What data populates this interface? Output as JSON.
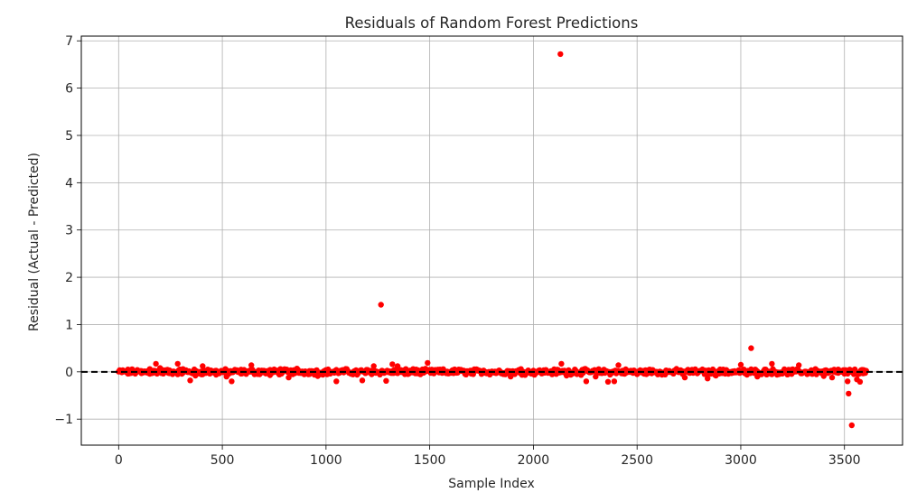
{
  "chart_data": {
    "type": "scatter",
    "title": "Residuals of Random Forest Predictions",
    "xlabel": "Sample Index",
    "ylabel": "Residual (Actual - Predicted)",
    "xlim": [
      -180,
      3780
    ],
    "ylim": [
      -1.55,
      7.1
    ],
    "xticks": [
      0,
      500,
      1000,
      1500,
      2000,
      2500,
      3000,
      3500
    ],
    "xtick_labels": [
      "0",
      "500",
      "1000",
      "1500",
      "2000",
      "2500",
      "3000",
      "3500"
    ],
    "yticks": [
      -1,
      0,
      1,
      2,
      3,
      4,
      5,
      6,
      7
    ],
    "ytick_labels": [
      "−1",
      "0",
      "1",
      "2",
      "3",
      "4",
      "5",
      "6",
      "7"
    ],
    "grid": true,
    "marker_color": "#ff0000",
    "reference_line": {
      "y": 0,
      "color": "#000000",
      "style": "dashed"
    },
    "sample_count": 3610,
    "series": [
      {
        "points": [
          [
            20,
            0.03
          ],
          [
            45,
            -0.04
          ],
          [
            85,
            0.02
          ],
          [
            110,
            -0.03
          ],
          [
            150,
            0.06
          ],
          [
            180,
            0.17
          ],
          [
            200,
            0.08
          ],
          [
            245,
            -0.03
          ],
          [
            285,
            0.17
          ],
          [
            310,
            0.06
          ],
          [
            345,
            -0.18
          ],
          [
            370,
            -0.08
          ],
          [
            405,
            0.12
          ],
          [
            430,
            0.05
          ],
          [
            470,
            -0.06
          ],
          [
            520,
            -0.1
          ],
          [
            545,
            -0.2
          ],
          [
            590,
            -0.04
          ],
          [
            640,
            0.14
          ],
          [
            690,
            0.03
          ],
          [
            730,
            -0.07
          ],
          [
            780,
            0.06
          ],
          [
            820,
            -0.12
          ],
          [
            860,
            0.07
          ],
          [
            920,
            0.02
          ],
          [
            960,
            -0.09
          ],
          [
            1000,
            0.04
          ],
          [
            1050,
            -0.2
          ],
          [
            1100,
            0.06
          ],
          [
            1150,
            -0.06
          ],
          [
            1175,
            -0.18
          ],
          [
            1230,
            0.12
          ],
          [
            1265,
            1.42
          ],
          [
            1290,
            -0.19
          ],
          [
            1320,
            0.16
          ],
          [
            1345,
            0.12
          ],
          [
            1380,
            -0.05
          ],
          [
            1420,
            0.06
          ],
          [
            1460,
            -0.03
          ],
          [
            1490,
            0.19
          ],
          [
            1530,
            0.04
          ],
          [
            1580,
            -0.03
          ],
          [
            1640,
            0.05
          ],
          [
            1700,
            -0.04
          ],
          [
            1760,
            0.03
          ],
          [
            1820,
            -0.02
          ],
          [
            1890,
            -0.1
          ],
          [
            1940,
            0.06
          ],
          [
            2000,
            -0.05
          ],
          [
            2060,
            0.04
          ],
          [
            2100,
            -0.02
          ],
          [
            2130,
            6.72
          ],
          [
            2135,
            0.17
          ],
          [
            2160,
            -0.08
          ],
          [
            2200,
            0.05
          ],
          [
            2255,
            -0.2
          ],
          [
            2300,
            -0.1
          ],
          [
            2360,
            -0.21
          ],
          [
            2390,
            -0.2
          ],
          [
            2410,
            0.14
          ],
          [
            2450,
            0.03
          ],
          [
            2500,
            -0.05
          ],
          [
            2560,
            0.05
          ],
          [
            2620,
            -0.06
          ],
          [
            2680,
            0.03
          ],
          [
            2730,
            -0.12
          ],
          [
            2780,
            0.02
          ],
          [
            2840,
            -0.14
          ],
          [
            2880,
            -0.08
          ],
          [
            2930,
            0.04
          ],
          [
            3000,
            0.15
          ],
          [
            3030,
            -0.06
          ],
          [
            3050,
            0.5
          ],
          [
            3080,
            -0.1
          ],
          [
            3120,
            0.05
          ],
          [
            3150,
            0.17
          ],
          [
            3200,
            -0.04
          ],
          [
            3240,
            0.04
          ],
          [
            3280,
            0.14
          ],
          [
            3320,
            -0.05
          ],
          [
            3360,
            0.06
          ],
          [
            3400,
            -0.09
          ],
          [
            3440,
            -0.12
          ],
          [
            3470,
            0.05
          ],
          [
            3500,
            -0.04
          ],
          [
            3515,
            -0.2
          ],
          [
            3520,
            -0.46
          ],
          [
            3535,
            -1.13
          ],
          [
            3560,
            -0.16
          ],
          [
            3575,
            -0.21
          ],
          [
            3590,
            0.04
          ]
        ]
      }
    ]
  }
}
